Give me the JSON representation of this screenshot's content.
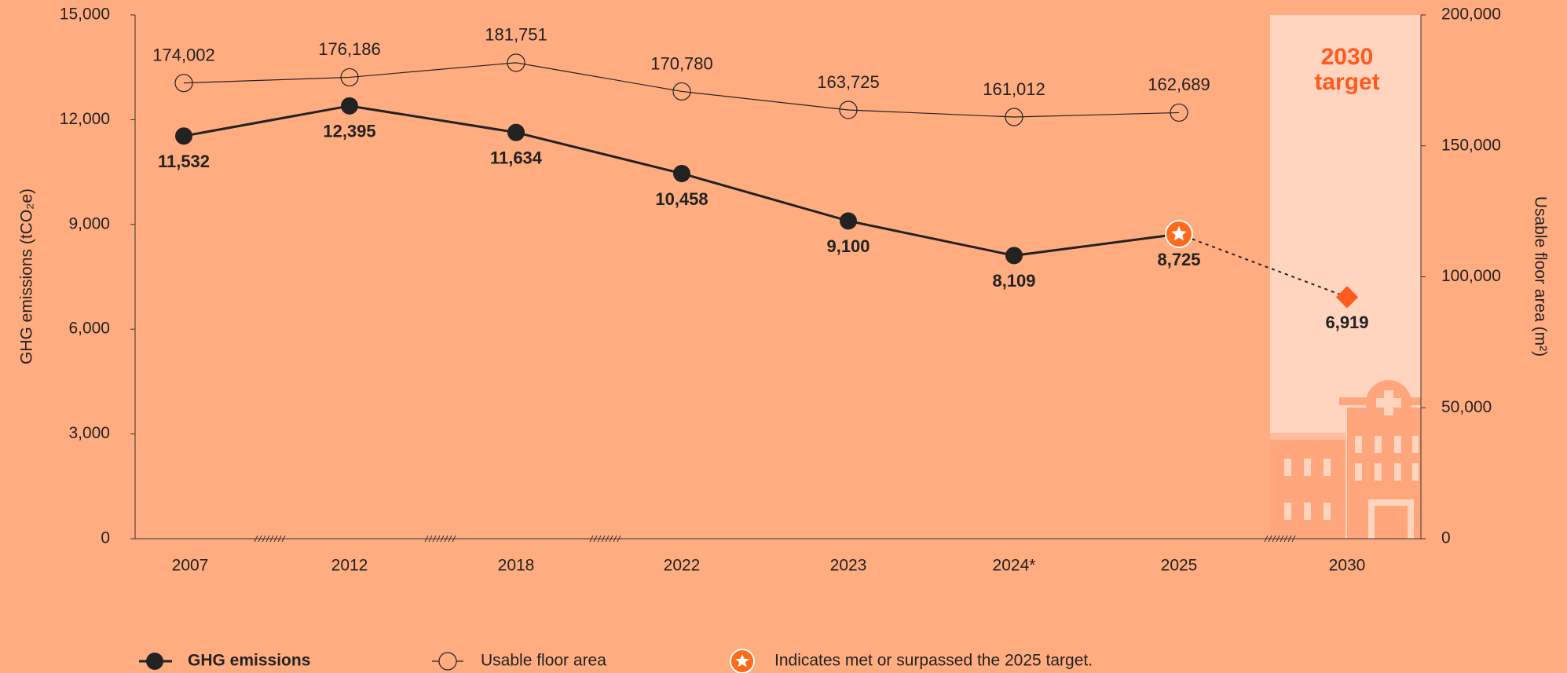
{
  "chart_data": {
    "type": "line",
    "categories": [
      "2007",
      "2012",
      "2018",
      "2022",
      "2023",
      "2024*",
      "2025",
      "2030"
    ],
    "series": [
      {
        "name": "GHG emissions",
        "color": "#222222",
        "values": [
          11532,
          12395,
          11634,
          10458,
          9100,
          8109,
          8725,
          null
        ],
        "value_labels": [
          "11,532",
          "12,395",
          "11,634",
          "10,458",
          "9,100",
          "8,109",
          "8,725",
          null
        ]
      },
      {
        "name": "Usable floor area",
        "color": "#222222",
        "axis": "y2",
        "values": [
          174002,
          176186,
          181751,
          170780,
          163725,
          161012,
          162689,
          null
        ],
        "value_labels": [
          "174,002",
          "176,186",
          "181,751",
          "170,780",
          "163,725",
          "161,012",
          "162,689",
          null
        ]
      }
    ],
    "target": {
      "lines": [
        "2030",
        "target"
      ],
      "category": "2030",
      "value": 6919,
      "value_label": "6,919",
      "color": "#FF5A1F"
    },
    "highlight_category": "2025",
    "highlight_note": "Indicates met or surpassed the 2025 target.",
    "ylabel": "GHG emissions (tCO₂e)",
    "y2label": "Usable floor area (m²)",
    "ylim": [
      0,
      15000
    ],
    "yticks": [
      0,
      {
        "value": 3000,
        "label": "3,000"
      },
      {
        "value": 6000,
        "label": "6,000"
      },
      {
        "value": 9000,
        "label": "9,000"
      },
      {
        "value": 12000,
        "label": "12,000"
      },
      {
        "value": 15000,
        "label": "15,000"
      }
    ],
    "y2lim": [
      0,
      200000
    ],
    "y2ticks": [
      0,
      {
        "value": 50000,
        "label": "50,000"
      },
      {
        "value": 100000,
        "label": "100,000"
      },
      {
        "value": 150000,
        "label": "150,000"
      },
      {
        "value": 200000,
        "label": "200,000"
      }
    ]
  }
}
